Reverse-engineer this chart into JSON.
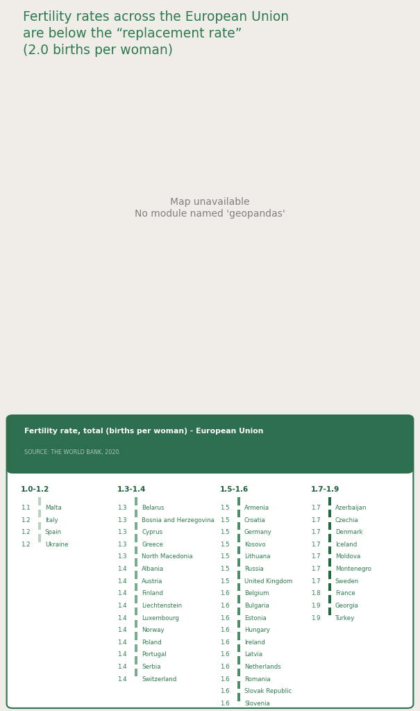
{
  "title_line1": "Fertility rates across the European Union",
  "title_line2": "are below the “replacement rate”",
  "title_line3": "(2.0 births per woman)",
  "title_color": "#2d7a4f",
  "bg_color": "#f0ede8",
  "card_bg": "#ffffff",
  "card_header_bg": "#2d6e4e",
  "card_header_text": "#ffffff",
  "card_border_color": "#2d6e4e",
  "card_title": "Fertility rate, total (births per woman) - European Union",
  "card_source": "SOURCE: THE WORLD BANK, 2020.",
  "table_header_color": "#1a5c38",
  "table_value_color": "#2d7a4f",
  "table_country_color": "#2d7a4f",
  "map_xlim": [
    -25,
    60
  ],
  "map_ylim": [
    34,
    72
  ],
  "map_default_color": "#c8ddd0",
  "map_bg_color": "#f0ede8",
  "map_edge_color": "#ffffff",
  "fertility_colors": {
    "Malta": "#b8d4c0",
    "Italy": "#b8d4c0",
    "Spain": "#b8d4c0",
    "Ukraine": "#b8d4c0",
    "Belarus": "#7aad8e",
    "Bosnia and Herz.": "#7aad8e",
    "Cyprus": "#7aad8e",
    "Greece": "#7aad8e",
    "North Macedonia": "#7aad8e",
    "Albania": "#7aad8e",
    "Austria": "#7aad8e",
    "Finland": "#7aad8e",
    "Liechtenstein": "#7aad8e",
    "Luxembourg": "#7aad8e",
    "Norway": "#7aad8e",
    "Poland": "#7aad8e",
    "Portugal": "#7aad8e",
    "Serbia": "#7aad8e",
    "Switzerland": "#7aad8e",
    "Armenia": "#4a8f68",
    "Croatia": "#4a8f68",
    "Germany": "#4a8f68",
    "Kosovo": "#4a8f68",
    "Lithuania": "#4a8f68",
    "Russia": "#4a8f68",
    "United Kingdom": "#4a8f68",
    "Belgium": "#4a8f68",
    "Bulgaria": "#4a8f68",
    "Estonia": "#4a8f68",
    "Hungary": "#4a8f68",
    "Ireland": "#4a8f68",
    "Latvia": "#4a8f68",
    "Netherlands": "#4a8f68",
    "Romania": "#4a8f68",
    "Slovakia": "#4a8f68",
    "Slovenia": "#4a8f68",
    "Azerbaijan": "#1e6b40",
    "Czech Republic": "#1e6b40",
    "Denmark": "#1e6b40",
    "Iceland": "#1e6b40",
    "Moldova": "#1e6b40",
    "Montenegro": "#1e6b40",
    "Sweden": "#1e6b40",
    "France": "#1e6b40",
    "Georgia": "#1e6b40",
    "Turkey": "#1e6b40"
  },
  "columns": [
    {
      "header": "1.0-1.2",
      "entries": [
        {
          "value": "1.1",
          "country": "Malta"
        },
        {
          "value": "1.2",
          "country": "Italy"
        },
        {
          "value": "1.2",
          "country": "Spain"
        },
        {
          "value": "1.2",
          "country": "Ukraine"
        }
      ],
      "bar_color": "#b8d4c0"
    },
    {
      "header": "1.3-1.4",
      "entries": [
        {
          "value": "1.3",
          "country": "Belarus"
        },
        {
          "value": "1.3",
          "country": "Bosnia and Herzegovina"
        },
        {
          "value": "1.3",
          "country": "Cyprus"
        },
        {
          "value": "1.3",
          "country": "Greece"
        },
        {
          "value": "1.3",
          "country": "North Macedonia"
        },
        {
          "value": "1.4",
          "country": "Albania"
        },
        {
          "value": "1.4",
          "country": "Austria"
        },
        {
          "value": "1.4",
          "country": "Finland"
        },
        {
          "value": "1.4",
          "country": "Liechtenstein"
        },
        {
          "value": "1.4",
          "country": "Luxembourg"
        },
        {
          "value": "1.4",
          "country": "Norway"
        },
        {
          "value": "1.4",
          "country": "Poland"
        },
        {
          "value": "1.4",
          "country": "Portugal"
        },
        {
          "value": "1.4",
          "country": "Serbia"
        },
        {
          "value": "1.4",
          "country": "Switzerland"
        }
      ],
      "bar_color": "#7aad8e"
    },
    {
      "header": "1.5-1.6",
      "entries": [
        {
          "value": "1.5",
          "country": "Armenia"
        },
        {
          "value": "1.5",
          "country": "Croatia"
        },
        {
          "value": "1.5",
          "country": "Germany"
        },
        {
          "value": "1.5",
          "country": "Kosovo"
        },
        {
          "value": "1.5",
          "country": "Lithuana"
        },
        {
          "value": "1.5",
          "country": "Russia"
        },
        {
          "value": "1.5",
          "country": "United Kingdom"
        },
        {
          "value": "1.6",
          "country": "Belgium"
        },
        {
          "value": "1.6",
          "country": "Bulgaria"
        },
        {
          "value": "1.6",
          "country": "Estonia"
        },
        {
          "value": "1.6",
          "country": "Hungary"
        },
        {
          "value": "1.6",
          "country": "Ireland"
        },
        {
          "value": "1.6",
          "country": "Latvia"
        },
        {
          "value": "1.6",
          "country": "Netherlands"
        },
        {
          "value": "1.6",
          "country": "Romania"
        },
        {
          "value": "1.6",
          "country": "Slovak Republic"
        },
        {
          "value": "1.6",
          "country": "Slovenia"
        }
      ],
      "bar_color": "#4a8f68"
    },
    {
      "header": "1.7-1.9",
      "entries": [
        {
          "value": "1.7",
          "country": "Azerbaijan"
        },
        {
          "value": "1.7",
          "country": "Czechia"
        },
        {
          "value": "1.7",
          "country": "Denmark"
        },
        {
          "value": "1.7",
          "country": "Iceland"
        },
        {
          "value": "1.7",
          "country": "Moldova"
        },
        {
          "value": "1.7",
          "country": "Montenegro"
        },
        {
          "value": "1.7",
          "country": "Sweden"
        },
        {
          "value": "1.8",
          "country": "France"
        },
        {
          "value": "1.9",
          "country": "Georgia"
        },
        {
          "value": "1.9",
          "country": "Turkey"
        }
      ],
      "bar_color": "#1e6b40"
    }
  ]
}
